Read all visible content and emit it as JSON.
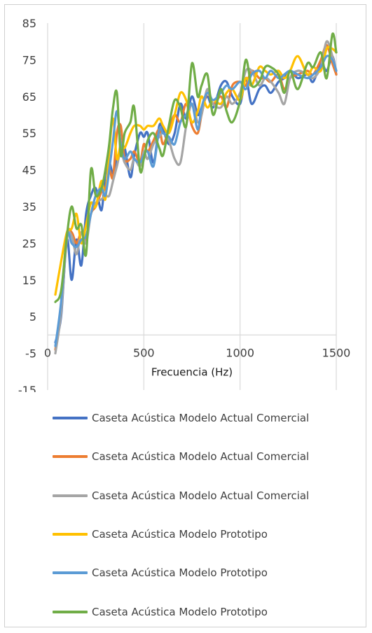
{
  "chart_data": {
    "type": "line",
    "xlabel": "Frecuencia (Hz)",
    "ylabel": "",
    "xlim": [
      0,
      1500
    ],
    "ylim": [
      -15,
      85
    ],
    "x_ticks": [
      0,
      500,
      1000,
      1500
    ],
    "y_ticks": [
      85,
      75,
      65,
      55,
      45,
      35,
      25,
      15,
      5,
      -5,
      -15
    ],
    "grid": "vertical",
    "legend_position": "bottom",
    "series": [
      {
        "name": "Caseta Acústica Modelo Actual Comercial",
        "color": "#4472C4",
        "x": [
          40,
          70,
          100,
          125,
          150,
          175,
          200,
          225,
          250,
          280,
          300,
          320,
          340,
          360,
          380,
          400,
          430,
          450,
          480,
          500,
          520,
          550,
          580,
          600,
          630,
          660,
          690,
          720,
          750,
          780,
          800,
          830,
          860,
          900,
          930,
          960,
          1000,
          1030,
          1060,
          1100,
          1130,
          1160,
          1200,
          1230,
          1260,
          1300,
          1350,
          1380,
          1420,
          1450,
          1480,
          1500
        ],
        "values": [
          -2,
          5,
          26,
          15,
          26,
          19,
          33,
          38,
          40,
          34,
          44,
          47,
          44,
          48,
          50,
          51,
          43,
          49,
          55,
          54,
          55,
          47,
          57,
          56,
          52,
          55,
          63,
          59,
          65,
          60,
          62,
          65,
          62,
          68,
          69,
          65,
          63,
          70,
          63,
          67,
          68,
          66,
          69,
          70,
          72,
          70,
          71,
          69,
          74,
          72,
          76,
          71
        ]
      },
      {
        "name": "Caseta Acústica Modelo Actual Comercial",
        "color": "#ED7D31",
        "x": [
          40,
          70,
          100,
          125,
          150,
          175,
          200,
          225,
          250,
          280,
          300,
          320,
          340,
          360,
          380,
          400,
          430,
          450,
          480,
          500,
          520,
          550,
          580,
          600,
          630,
          660,
          690,
          720,
          750,
          780,
          800,
          830,
          860,
          900,
          930,
          960,
          1000,
          1030,
          1060,
          1100,
          1130,
          1160,
          1200,
          1230,
          1260,
          1300,
          1350,
          1380,
          1420,
          1450,
          1480,
          1500
        ],
        "values": [
          -4,
          8,
          27,
          28,
          25,
          28,
          26,
          33,
          35,
          39,
          40,
          45,
          43,
          55,
          57,
          48,
          48,
          50,
          47,
          52,
          50,
          53,
          56,
          52,
          56,
          60,
          58,
          63,
          57,
          55,
          60,
          66,
          63,
          65,
          62,
          68,
          69,
          68,
          72,
          70,
          70,
          69,
          71,
          67,
          70,
          71,
          72,
          71,
          75,
          79,
          74,
          71
        ]
      },
      {
        "name": "Caseta Acústica Modelo Actual Comercial",
        "color": "#A5A5A5",
        "x": [
          40,
          70,
          100,
          125,
          150,
          175,
          200,
          225,
          250,
          280,
          300,
          320,
          340,
          360,
          380,
          400,
          430,
          450,
          480,
          500,
          520,
          550,
          580,
          600,
          630,
          660,
          690,
          720,
          750,
          780,
          800,
          830,
          860,
          900,
          930,
          960,
          1000,
          1030,
          1060,
          1100,
          1130,
          1160,
          1200,
          1230,
          1260,
          1300,
          1350,
          1380,
          1420,
          1450,
          1480,
          1500
        ],
        "values": [
          -5,
          6,
          26,
          27,
          22,
          28,
          25,
          33,
          36,
          37,
          38,
          38,
          42,
          46,
          50,
          47,
          45,
          48,
          46,
          50,
          48,
          52,
          54,
          55,
          53,
          48,
          47,
          57,
          63,
          58,
          60,
          67,
          63,
          62,
          65,
          63,
          66,
          72,
          72,
          68,
          70,
          69,
          66,
          63,
          70,
          72,
          71,
          70,
          73,
          80,
          76,
          72
        ]
      },
      {
        "name": "Caseta Acústica Modelo Prototipo",
        "color": "#FFC000",
        "x": [
          40,
          70,
          100,
          125,
          150,
          175,
          200,
          225,
          250,
          280,
          300,
          320,
          340,
          360,
          380,
          400,
          430,
          450,
          480,
          500,
          520,
          550,
          580,
          600,
          630,
          660,
          690,
          720,
          750,
          780,
          800,
          830,
          860,
          900,
          930,
          960,
          1000,
          1030,
          1060,
          1100,
          1130,
          1160,
          1200,
          1230,
          1260,
          1300,
          1350,
          1380,
          1420,
          1450,
          1480,
          1500
        ],
        "values": [
          11,
          20,
          28,
          29,
          33,
          25,
          30,
          36,
          35,
          42,
          37,
          50,
          59,
          48,
          52,
          51,
          55,
          57,
          57,
          56,
          57,
          57,
          59,
          57,
          55,
          60,
          66,
          64,
          58,
          61,
          65,
          62,
          64,
          63,
          66,
          67,
          64,
          70,
          68,
          73,
          72,
          71,
          72,
          70,
          72,
          76,
          71,
          73,
          72,
          78,
          78,
          77
        ]
      },
      {
        "name": "Caseta Acústica Modelo Prototipo",
        "color": "#5B9BD5",
        "x": [
          40,
          70,
          100,
          125,
          150,
          175,
          200,
          225,
          250,
          280,
          300,
          320,
          340,
          360,
          380,
          400,
          430,
          450,
          480,
          500,
          520,
          550,
          580,
          600,
          630,
          660,
          690,
          720,
          750,
          780,
          800,
          830,
          860,
          900,
          930,
          960,
          1000,
          1030,
          1060,
          1100,
          1130,
          1160,
          1200,
          1230,
          1260,
          1300,
          1350,
          1380,
          1420,
          1450,
          1480,
          1500
        ],
        "values": [
          -3,
          9,
          27,
          25,
          24,
          26,
          27,
          33,
          38,
          40,
          38,
          45,
          53,
          61,
          52,
          48,
          50,
          48,
          47,
          49,
          50,
          46,
          56,
          55,
          54,
          52,
          58,
          60,
          63,
          56,
          62,
          66,
          64,
          66,
          68,
          67,
          69,
          67,
          71,
          72,
          70,
          72,
          70,
          71,
          72,
          71,
          70,
          71,
          73,
          76,
          75,
          72
        ]
      },
      {
        "name": "Caseta Acústica Modelo Prototipo",
        "color": "#70AD47",
        "x": [
          40,
          70,
          100,
          125,
          150,
          175,
          200,
          225,
          250,
          280,
          300,
          320,
          340,
          360,
          380,
          400,
          430,
          450,
          480,
          500,
          520,
          550,
          580,
          600,
          630,
          660,
          690,
          720,
          750,
          780,
          800,
          830,
          860,
          900,
          930,
          960,
          1000,
          1030,
          1060,
          1100,
          1130,
          1160,
          1200,
          1230,
          1260,
          1300,
          1350,
          1380,
          1420,
          1450,
          1480,
          1500
        ],
        "values": [
          9,
          12,
          27,
          35,
          29,
          30,
          22,
          45,
          38,
          40,
          45,
          52,
          62,
          66,
          49,
          55,
          58,
          62,
          45,
          48,
          53,
          55,
          51,
          49,
          57,
          64,
          62,
          57,
          74,
          65,
          68,
          71,
          60,
          67,
          61,
          58,
          64,
          75,
          68,
          69,
          73,
          73,
          71,
          66,
          72,
          67,
          74,
          73,
          77,
          70,
          82,
          77
        ]
      }
    ]
  }
}
